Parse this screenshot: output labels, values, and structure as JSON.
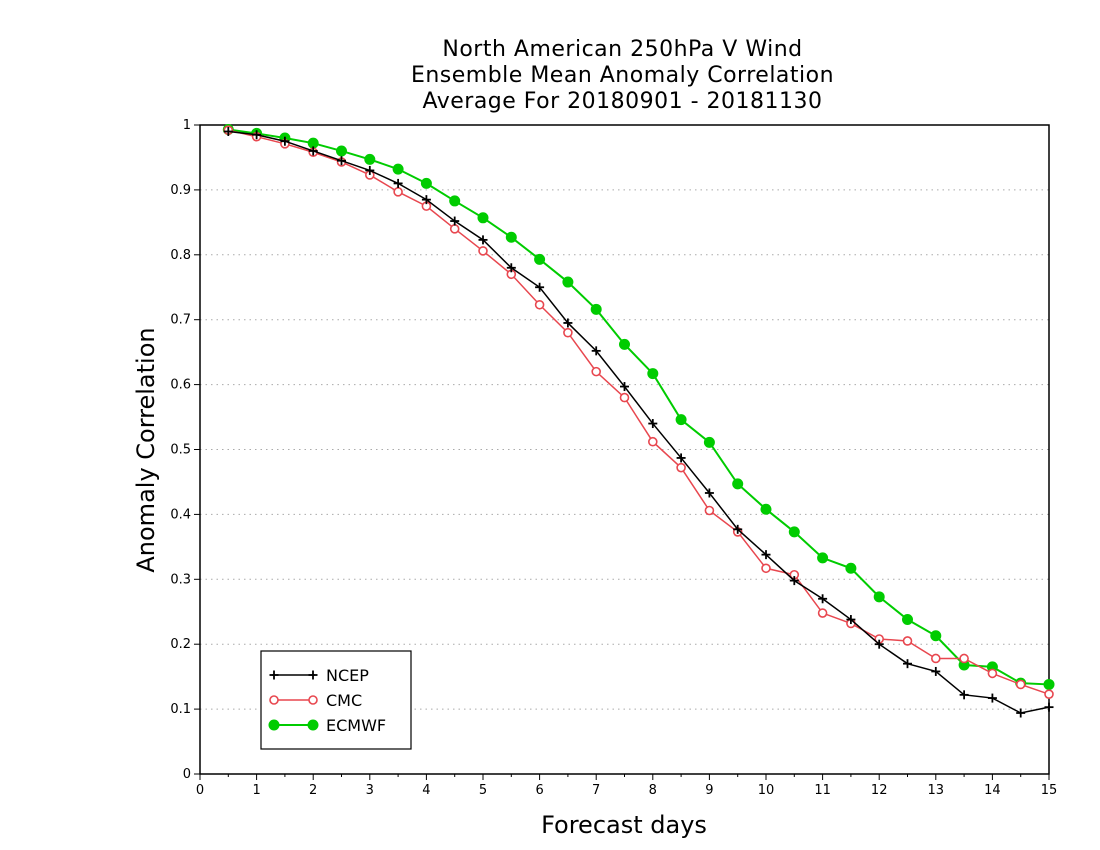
{
  "chart_data": {
    "type": "line",
    "title_lines": [
      "North American 250hPa V Wind",
      "Ensemble Mean Anomaly Correlation",
      "Average For 20180901 - 20181130"
    ],
    "xlabel": "Forecast days",
    "ylabel": "Anomaly Correlation",
    "xlim": [
      0,
      15
    ],
    "ylim": [
      0,
      1
    ],
    "xticks": [
      "0",
      "1",
      "2",
      "3",
      "4",
      "5",
      "6",
      "7",
      "8",
      "9",
      "10",
      "11",
      "12",
      "13",
      "14",
      "15"
    ],
    "yticks": [
      "0",
      "0.1",
      "0.2",
      "0.3",
      "0.4",
      "0.5",
      "0.6",
      "0.7",
      "0.8",
      "0.9",
      "1"
    ],
    "grid": "horizontal dotted",
    "legend_position": "bottom-left",
    "x": [
      0.5,
      1,
      1.5,
      2,
      2.5,
      3,
      3.5,
      4,
      4.5,
      5,
      5.5,
      6,
      6.5,
      7,
      7.5,
      8,
      8.5,
      9,
      9.5,
      10,
      10.5,
      11,
      11.5,
      12,
      12.5,
      13,
      13.5,
      14,
      14.5,
      15
    ],
    "series": [
      {
        "name": "NCEP",
        "color": "#000000",
        "marker": "plus",
        "values": [
          0.99,
          0.985,
          0.975,
          0.96,
          0.945,
          0.93,
          0.91,
          0.885,
          0.852,
          0.823,
          0.78,
          0.75,
          0.695,
          0.652,
          0.597,
          0.54,
          0.487,
          0.433,
          0.377,
          0.338,
          0.298,
          0.27,
          0.238,
          0.2,
          0.17,
          0.158,
          0.122,
          0.117,
          0.094,
          0.103
        ]
      },
      {
        "name": "CMC",
        "color": "#e8474f",
        "marker": "open-circle",
        "values": [
          0.992,
          0.982,
          0.971,
          0.958,
          0.943,
          0.923,
          0.897,
          0.875,
          0.84,
          0.806,
          0.77,
          0.723,
          0.68,
          0.62,
          0.58,
          0.512,
          0.472,
          0.406,
          0.373,
          0.317,
          0.307,
          0.248,
          0.232,
          0.208,
          0.205,
          0.178,
          0.178,
          0.155,
          0.138,
          0.123
        ]
      },
      {
        "name": "ECMWF",
        "color": "#00cc00",
        "marker": "filled-circle",
        "values": [
          0.993,
          0.987,
          0.98,
          0.972,
          0.96,
          0.947,
          0.932,
          0.91,
          0.883,
          0.857,
          0.827,
          0.793,
          0.758,
          0.716,
          0.662,
          0.617,
          0.546,
          0.511,
          0.447,
          0.408,
          0.373,
          0.333,
          0.317,
          0.273,
          0.238,
          0.213,
          0.168,
          0.165,
          0.14,
          0.138
        ]
      }
    ]
  }
}
